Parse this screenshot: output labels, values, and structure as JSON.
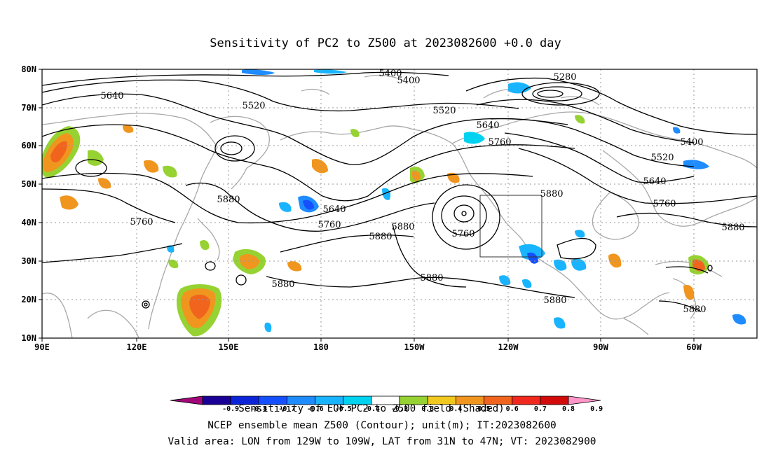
{
  "title": "Sensitivity of PC2 to Z500 at 2023082600 +0.0 day",
  "lat_labels": [
    "80N",
    "70N",
    "60N",
    "50N",
    "40N",
    "30N",
    "20N",
    "10N"
  ],
  "lon_labels": [
    "90E",
    "120E",
    "150E",
    "180",
    "150W",
    "120W",
    "90W",
    "60W"
  ],
  "contour_labels": [
    {
      "id": "c5400a",
      "text": "5400"
    },
    {
      "id": "c5400b",
      "text": "5400"
    },
    {
      "id": "c5280",
      "text": "5280"
    },
    {
      "id": "c5640a",
      "text": "5640"
    },
    {
      "id": "c5520a",
      "text": "5520"
    },
    {
      "id": "c5520b",
      "text": "5520"
    },
    {
      "id": "c5640b",
      "text": "5640"
    },
    {
      "id": "c5760a",
      "text": "5760"
    },
    {
      "id": "c5400c",
      "text": "5400"
    },
    {
      "id": "c5520c",
      "text": "5520"
    },
    {
      "id": "c5640c",
      "text": "5640"
    },
    {
      "id": "c5760b",
      "text": "5760"
    },
    {
      "id": "c5880a",
      "text": "5880"
    },
    {
      "id": "c5880b",
      "text": "5880"
    },
    {
      "id": "c5760c",
      "text": "5760"
    },
    {
      "id": "c5640d",
      "text": "5640"
    },
    {
      "id": "c5760d",
      "text": "5760"
    },
    {
      "id": "c5880c",
      "text": "5880"
    },
    {
      "id": "c5880d",
      "text": "5880"
    },
    {
      "id": "c5760e",
      "text": "5760"
    },
    {
      "id": "c5880e",
      "text": "5880"
    },
    {
      "id": "c5880f",
      "text": "5880"
    },
    {
      "id": "c5880g",
      "text": "5880"
    },
    {
      "id": "c5880h",
      "text": "5880"
    },
    {
      "id": "c5880i",
      "text": "5880"
    }
  ],
  "colorbar": {
    "levels": [
      "-0.9",
      "-0.8",
      "-0.7",
      "-0.6",
      "-0.5",
      "-0.4",
      "-0.3",
      "0.3",
      "0.4",
      "0.5",
      "0.6",
      "0.7",
      "0.8",
      "0.9"
    ],
    "colors": [
      "#a0087a",
      "#1a0096",
      "#0c24d8",
      "#1450ff",
      "#1e8cff",
      "#19b4ff",
      "#00d2f0",
      "#ffffff",
      "#96d232",
      "#f0c81e",
      "#f0961e",
      "#f0641e",
      "#f0281e",
      "#d20a0a",
      "#ff96c8"
    ],
    "overlay_label": "Sensitivity of EOF PC2 to Z500 field (Shaded)"
  },
  "footer": {
    "line1": "NCEP ensemble mean Z500 (Contour); unit(m); IT:2023082600",
    "line2": "Valid area: LON from 129W to 109W, LAT from 31N to 47N; VT: 2023082900"
  }
}
